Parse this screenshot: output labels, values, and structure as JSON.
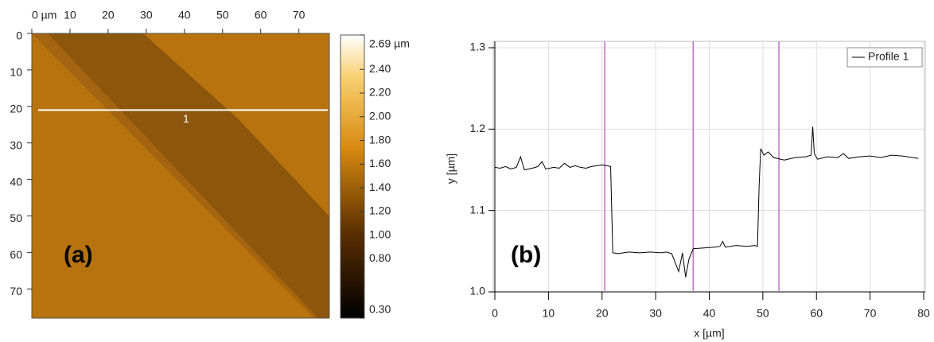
{
  "chart_data": [
    {
      "type": "image",
      "annotation": "(a)",
      "xlim": [
        0,
        78
      ],
      "ylim": [
        0,
        78
      ],
      "xticks": [
        {
          "value": 0,
          "label": "0 µm"
        },
        10,
        20,
        30,
        40,
        50,
        60,
        70
      ],
      "yticks": [
        0,
        10,
        20,
        30,
        40,
        50,
        60,
        70
      ],
      "profile_line": {
        "label": "1",
        "y": 21,
        "color": "#ffffff"
      },
      "colorbar": {
        "clim": [
          0.3,
          2.69
        ],
        "ticks": [
          {
            "value": 2.69,
            "label": "2.69 µm"
          },
          {
            "value": 2.4,
            "label": "2.40"
          },
          {
            "value": 2.2,
            "label": "2.20"
          },
          {
            "value": 2,
            "label": "2.00"
          },
          {
            "value": 1.8,
            "label": "1.80"
          },
          {
            "value": 1.6,
            "label": "1.60"
          },
          {
            "value": 1.4,
            "label": "1.40"
          },
          {
            "value": 1.2,
            "label": "1.20"
          },
          {
            "value": 1,
            "label": "1.00"
          },
          {
            "value": 0.8,
            "label": "0.80"
          },
          {
            "value": 0.3,
            "label": "0.30"
          }
        ]
      }
    },
    {
      "type": "line",
      "annotation": "(b)",
      "xlabel": "x [µm]",
      "ylabel": "y [µm]",
      "xlim": [
        0,
        80
      ],
      "ylim": [
        1,
        1.3
      ],
      "xticks": [
        0,
        10,
        20,
        30,
        40,
        50,
        60,
        70,
        80
      ],
      "yticks": [
        {
          "value": 1,
          "label": "1.0"
        },
        1.1,
        1.2,
        1.3
      ],
      "grid": true,
      "legend": "upper right",
      "markers": [
        20.5,
        37,
        53
      ],
      "marker_color": "#c070c0",
      "x": [
        0,
        1,
        2,
        3,
        4,
        4.8,
        5.5,
        7,
        8,
        8.8,
        9.5,
        11,
        12,
        13,
        14,
        15,
        16,
        17,
        18,
        19,
        20,
        21,
        21.6,
        22,
        23,
        25,
        27,
        29,
        31,
        32,
        33,
        33.7,
        34.3,
        35,
        35.6,
        36.2,
        37,
        39,
        41,
        42,
        42.5,
        43,
        45,
        47,
        48.5,
        49,
        49.3,
        49.6,
        50.2,
        51,
        52,
        54,
        56,
        58,
        59,
        59.3,
        59.6,
        60.2,
        62,
        64,
        65,
        66,
        68,
        70,
        72,
        74,
        76,
        78,
        79
      ],
      "series": [
        {
          "name": "Profile 1",
          "color": "#000000",
          "values": [
            1.153,
            1.152,
            1.154,
            1.151,
            1.153,
            1.166,
            1.15,
            1.152,
            1.154,
            1.16,
            1.151,
            1.153,
            1.152,
            1.158,
            1.153,
            1.155,
            1.153,
            1.152,
            1.154,
            1.155,
            1.156,
            1.155,
            1.154,
            1.048,
            1.047,
            1.049,
            1.048,
            1.049,
            1.048,
            1.049,
            1.047,
            1.035,
            1.025,
            1.048,
            1.018,
            1.04,
            1.053,
            1.054,
            1.055,
            1.056,
            1.062,
            1.055,
            1.057,
            1.056,
            1.057,
            1.056,
            1.13,
            1.176,
            1.168,
            1.172,
            1.165,
            1.162,
            1.165,
            1.166,
            1.168,
            1.203,
            1.17,
            1.163,
            1.166,
            1.165,
            1.17,
            1.164,
            1.166,
            1.167,
            1.165,
            1.168,
            1.167,
            1.165,
            1.164
          ]
        }
      ]
    }
  ]
}
